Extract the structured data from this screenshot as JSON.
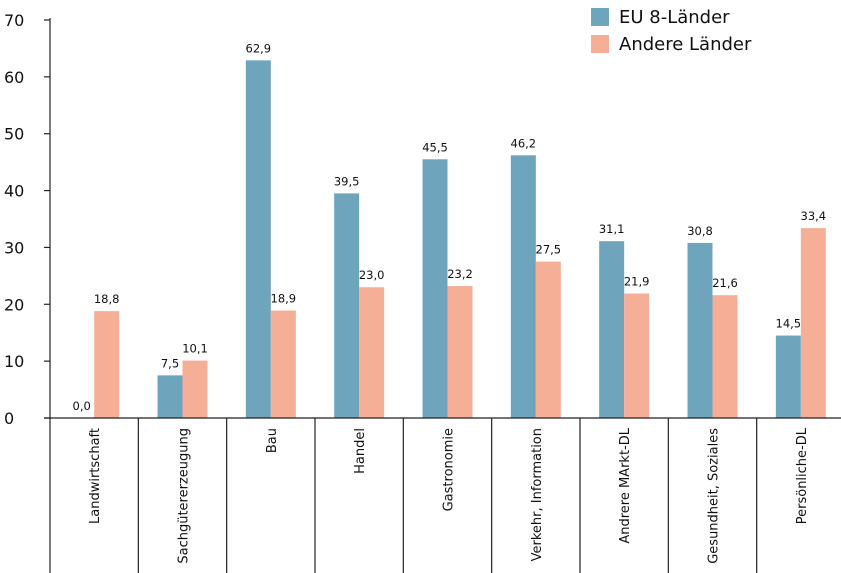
{
  "chart_data": {
    "type": "bar",
    "categories": [
      "Landwirtschaft",
      "Sachgütererzeugung",
      "Bau",
      "Handel",
      "Gastronomie",
      "Verkehr, Information",
      "Andrere MArkt-DL",
      "Gesundheit, Soziales",
      "Persönliche-DL"
    ],
    "series": [
      {
        "name": "EU 8-Länder",
        "color": "#6fa4bd",
        "values": [
          0.0,
          7.5,
          62.9,
          39.5,
          45.5,
          46.2,
          31.1,
          30.8,
          14.5
        ],
        "labels": [
          "0,0",
          "7,5",
          "62,9",
          "39,5",
          "45,5",
          "46,2",
          "31,1",
          "30,8",
          "14,5"
        ]
      },
      {
        "name": "Andere Länder",
        "color": "#f4af96",
        "values": [
          18.8,
          10.1,
          18.9,
          23.0,
          23.2,
          27.5,
          21.9,
          21.6,
          33.4
        ],
        "labels": [
          "18,8",
          "10,1",
          "18,9",
          "23,0",
          "23,2",
          "27,5",
          "21,9",
          "21,6",
          "33,4"
        ]
      }
    ],
    "yticks": [
      "0",
      "10",
      "20",
      "30",
      "40",
      "50",
      "60",
      "70"
    ],
    "ylim": [
      0,
      70
    ],
    "grid": false,
    "legend_position": "top-right",
    "title": "",
    "xlabel": "",
    "ylabel": ""
  }
}
